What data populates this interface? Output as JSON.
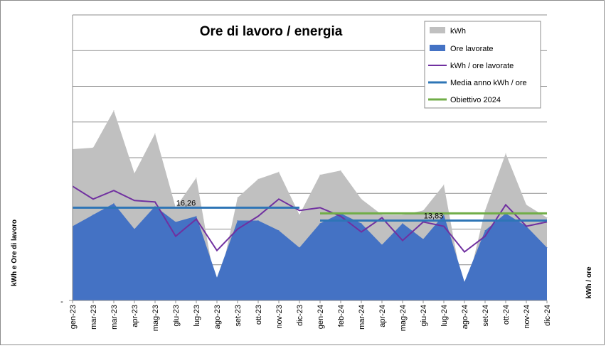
{
  "chart_data": {
    "type": "area",
    "title": "Ore di lavoro / energia",
    "ylabel_left": "kWh    e   Ore di lavoro",
    "ylabel_right": "kWh / ore",
    "left_axis_tick_label": "-",
    "categories": [
      "gen-23",
      "mar-23",
      "mar-23",
      "apr-23",
      "mag-23",
      "giu-23",
      "lug-23",
      "ago-23",
      "set-23",
      "ott-23",
      "nov-23",
      "dic-23",
      "gen-24",
      "feb-24",
      "mar-24",
      "apr-24",
      "mag-24",
      "giu-24",
      "lug-24",
      "ago-24",
      "set-24",
      "ott-24",
      "nov-24",
      "dic-24"
    ],
    "ylim": [
      0,
      10
    ],
    "gridlines": true,
    "legend_position": "top-right",
    "series": [
      {
        "name": "kWh",
        "type": "area",
        "color": "#c0c0c0",
        "values": [
          5.3,
          5.35,
          6.65,
          4.45,
          5.85,
          3.25,
          4.3,
          0.2,
          3.6,
          4.25,
          4.5,
          3.0,
          4.4,
          4.55,
          3.55,
          3.0,
          3.0,
          3.15,
          4.05,
          0.1,
          3.15,
          5.15,
          3.35,
          2.9
        ]
      },
      {
        "name": "Ore lavorate",
        "type": "area",
        "color": "#4472c4",
        "values": [
          2.6,
          3.0,
          3.4,
          2.5,
          3.3,
          2.75,
          2.95,
          0.8,
          2.8,
          2.8,
          2.45,
          1.85,
          2.7,
          3.05,
          2.7,
          1.95,
          2.7,
          2.15,
          3.0,
          0.65,
          2.45,
          3.05,
          2.6,
          1.85
        ]
      },
      {
        "name": "kWh / ore lavorate",
        "type": "line",
        "color": "#7030a0",
        "values": [
          4.0,
          3.55,
          3.85,
          3.5,
          3.45,
          2.25,
          2.85,
          1.75,
          2.5,
          2.95,
          3.55,
          3.15,
          3.25,
          2.95,
          2.4,
          2.9,
          2.1,
          2.75,
          2.6,
          1.7,
          2.25,
          3.35,
          2.6,
          2.75
        ]
      },
      {
        "name": "Media anno kWh / ore",
        "type": "line",
        "color": "#2e75b6",
        "segments": [
          {
            "from": 0,
            "to": 11,
            "value": 3.25,
            "label": "16,26"
          },
          {
            "from": 12,
            "to": 23,
            "value": 2.8,
            "label": "13,83"
          }
        ]
      },
      {
        "name": "Obiettivo 2024",
        "type": "line",
        "color": "#70ad47",
        "segments": [
          {
            "from": 12,
            "to": 23,
            "value": 3.05
          }
        ]
      }
    ]
  }
}
